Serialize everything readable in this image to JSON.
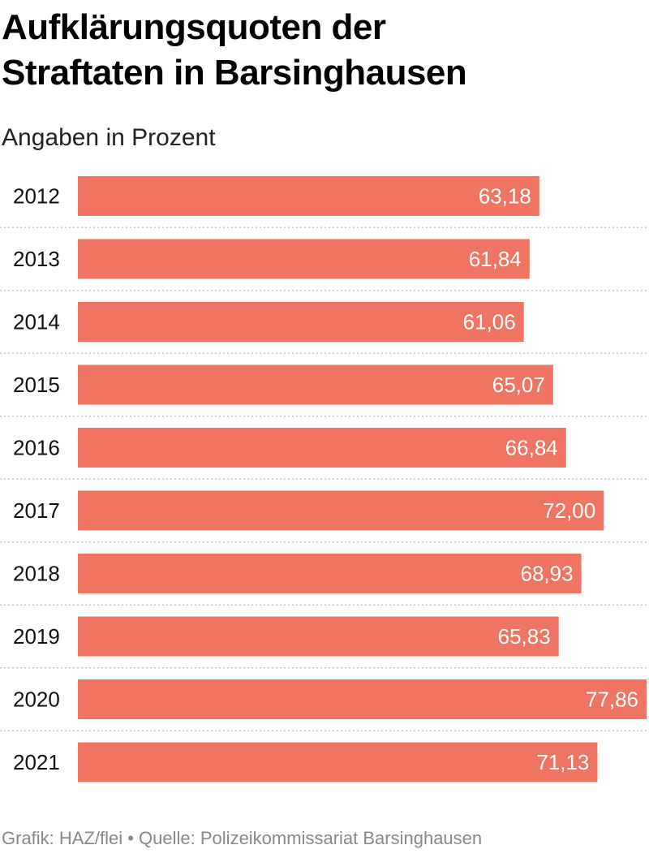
{
  "title_line1": "Aufklärungsquoten der",
  "title_line2": "Straftaten in Barsinghausen",
  "subtitle": "Angaben in Prozent",
  "footer": "Grafik: HAZ/flei • Quelle: Polizeikommissariat Barsinghausen",
  "colors": {
    "bar": "#ef7461",
    "label_inside": "#ffffff",
    "separator": "#c8c8c8"
  },
  "chart_data": {
    "type": "bar",
    "orientation": "horizontal",
    "title": "Aufklärungsquoten der Straftaten in Barsinghausen",
    "subtitle": "Angaben in Prozent",
    "categories": [
      "2012",
      "2013",
      "2014",
      "2015",
      "2016",
      "2017",
      "2018",
      "2019",
      "2020",
      "2021"
    ],
    "values": [
      63.18,
      61.84,
      61.06,
      65.07,
      66.84,
      72.0,
      68.93,
      65.83,
      77.86,
      71.13
    ],
    "value_labels": [
      "63,18",
      "61,84",
      "61,06",
      "65,07",
      "66,84",
      "72,00",
      "68,93",
      "65,83",
      "77,86",
      "71,13"
    ],
    "xlim": [
      0,
      77.86
    ],
    "grid": false,
    "legend": "none"
  }
}
